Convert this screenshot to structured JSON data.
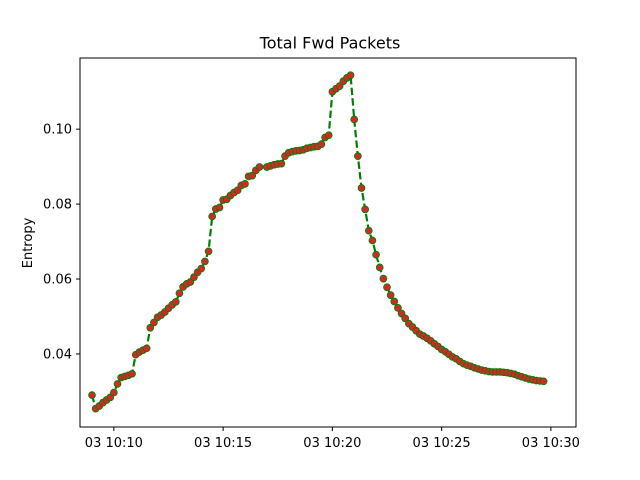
{
  "chart_data": {
    "type": "line",
    "title": "Total Fwd Packets",
    "xlabel": "",
    "ylabel": "Entropy",
    "x_tick_labels": [
      "03 10:10",
      "03 10:15",
      "03 10:20",
      "03 10:25",
      "03 10:30"
    ],
    "x_ticks": [
      "10:10:00",
      "10:15:00",
      "10:20:00",
      "10:25:00",
      "10:30:00"
    ],
    "y_tick_labels": [
      "0.04",
      "0.06",
      "0.08",
      "0.10"
    ],
    "y_ticks": [
      0.04,
      0.06,
      0.08,
      0.1
    ],
    "xlim": [
      "10:08:27",
      "10:31:09"
    ],
    "ylim": [
      0.0205,
      0.119
    ],
    "grid": false,
    "legend": "none",
    "line_color": "#008000",
    "line_style": "dashed",
    "marker_color": "#d62728",
    "series": [
      {
        "x": [
          "10:09:00",
          "10:09:10",
          "10:09:20",
          "10:09:30",
          "10:09:40",
          "10:09:50",
          "10:10:00",
          "10:10:10",
          "10:10:20",
          "10:10:30",
          "10:10:40",
          "10:10:50",
          "10:11:00",
          "10:11:10",
          "10:11:20",
          "10:11:30",
          "10:11:40",
          "10:11:50",
          "10:12:00",
          "10:12:10",
          "10:12:20",
          "10:12:30",
          "10:12:40",
          "10:12:50",
          "10:13:00",
          "10:13:10",
          "10:13:20",
          "10:13:30",
          "10:13:40",
          "10:13:50",
          "10:14:00",
          "10:14:10",
          "10:14:20",
          "10:14:30",
          "10:14:40",
          "10:14:50",
          "10:15:00",
          "10:15:10",
          "10:15:20",
          "10:15:30",
          "10:15:40",
          "10:15:50",
          "10:16:00",
          "10:16:10",
          "10:16:20",
          "10:16:30",
          "10:16:40",
          "10:17:00",
          "10:17:10",
          "10:17:20",
          "10:17:30",
          "10:17:40",
          "10:17:50",
          "10:18:00",
          "10:18:10",
          "10:18:20",
          "10:18:30",
          "10:18:40",
          "10:18:50",
          "10:19:00",
          "10:19:10",
          "10:19:20",
          "10:19:30",
          "10:19:40",
          "10:19:50",
          "10:20:00",
          "10:20:10",
          "10:20:20",
          "10:20:30",
          "10:20:40",
          "10:20:50",
          "10:21:00",
          "10:21:10",
          "10:21:20",
          "10:21:30",
          "10:21:40",
          "10:21:50",
          "10:22:00",
          "10:22:10",
          "10:22:20",
          "10:22:30",
          "10:22:40",
          "10:22:50",
          "10:23:00",
          "10:23:10",
          "10:23:20",
          "10:23:30",
          "10:23:40",
          "10:23:50",
          "10:24:00",
          "10:24:10",
          "10:24:20",
          "10:24:30",
          "10:24:40",
          "10:24:50",
          "10:25:00",
          "10:25:10",
          "10:25:20",
          "10:25:30",
          "10:25:40",
          "10:25:50",
          "10:26:00",
          "10:26:10",
          "10:26:20",
          "10:26:30",
          "10:26:40",
          "10:26:50",
          "10:27:00",
          "10:27:10",
          "10:27:20",
          "10:27:30",
          "10:27:40",
          "10:27:50",
          "10:28:00",
          "10:28:10",
          "10:28:20",
          "10:28:30",
          "10:28:40",
          "10:28:50",
          "10:29:00",
          "10:29:10",
          "10:29:20",
          "10:29:30",
          "10:29:40"
        ],
        "values": [
          0.029,
          0.0254,
          0.0261,
          0.027,
          0.0277,
          0.0284,
          0.0297,
          0.032,
          0.0337,
          0.034,
          0.0343,
          0.0347,
          0.0398,
          0.0405,
          0.041,
          0.0415,
          0.047,
          0.0484,
          0.0498,
          0.0504,
          0.0512,
          0.0522,
          0.0531,
          0.0539,
          0.0562,
          0.0579,
          0.0587,
          0.0592,
          0.0605,
          0.0618,
          0.0628,
          0.0647,
          0.0674,
          0.0767,
          0.0787,
          0.0791,
          0.0811,
          0.0813,
          0.0823,
          0.0831,
          0.0837,
          0.085,
          0.0854,
          0.0874,
          0.0876,
          0.089,
          0.0899,
          0.0899,
          0.0902,
          0.0905,
          0.0907,
          0.0908,
          0.0928,
          0.0937,
          0.094,
          0.0942,
          0.0943,
          0.0945,
          0.0949,
          0.0951,
          0.0953,
          0.0954,
          0.096,
          0.0978,
          0.0984,
          0.11,
          0.1108,
          0.1115,
          0.1128,
          0.1137,
          0.1144,
          0.1026,
          0.0928,
          0.0843,
          0.0786,
          0.0729,
          0.0703,
          0.0665,
          0.0631,
          0.0601,
          0.0578,
          0.0557,
          0.054,
          0.0523,
          0.0508,
          0.0495,
          0.0481,
          0.0472,
          0.0462,
          0.0453,
          0.0448,
          0.0442,
          0.0435,
          0.0427,
          0.042,
          0.0412,
          0.0406,
          0.0399,
          0.0392,
          0.0387,
          0.038,
          0.0374,
          0.037,
          0.0367,
          0.0363,
          0.036,
          0.0357,
          0.0355,
          0.0353,
          0.0352,
          0.0352,
          0.0352,
          0.0351,
          0.035,
          0.0348,
          0.0346,
          0.0342,
          0.0339,
          0.0336,
          0.0333,
          0.0331,
          0.0329,
          0.0328,
          0.0327
        ]
      }
    ]
  }
}
